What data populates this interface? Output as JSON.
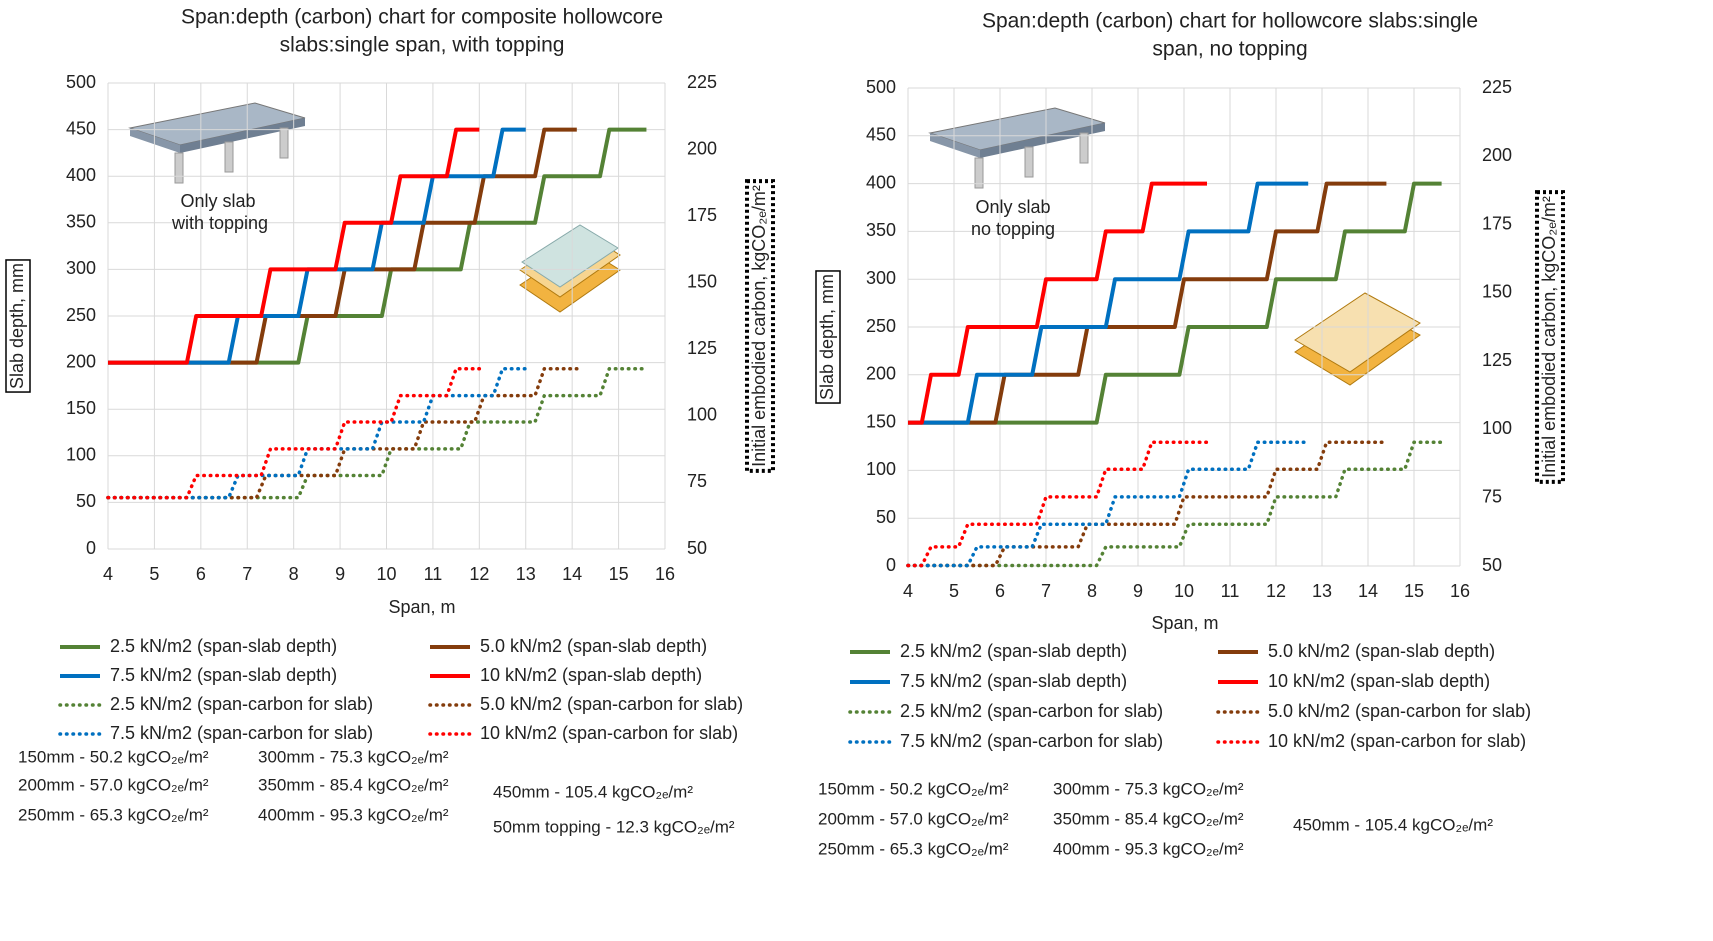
{
  "chart_data": [
    {
      "type": "line",
      "title": [
        "Span:depth (carbon) chart for composite hollowcore",
        "slabs:single span, with topping"
      ],
      "x_label": "Span, m",
      "y_label": "Slab depth, mm",
      "y2_label": "Initial embodied carbon, kgCO₂ₑ/m²",
      "annotation": [
        "Only slab",
        "with topping"
      ],
      "xlim": [
        4,
        16
      ],
      "xticks": [
        4,
        5,
        6,
        7,
        8,
        9,
        10,
        11,
        12,
        13,
        14,
        15,
        16
      ],
      "ylim": [
        0,
        500
      ],
      "yticks": [
        0,
        50,
        100,
        150,
        200,
        250,
        300,
        350,
        400,
        450,
        500
      ],
      "y2lim": [
        50,
        225
      ],
      "y2ticks": [
        50,
        75,
        100,
        125,
        150,
        175,
        200,
        225
      ],
      "grid": true,
      "series": [
        {
          "name": "2.5 kN/m2 (span-slab depth)",
          "color": "#548235",
          "style": "solid",
          "x": [
            4,
            8.1,
            8.3,
            9.9,
            10.1,
            11.6,
            11.8,
            13.2,
            13.4,
            14.6,
            14.8,
            15.6
          ],
          "values": [
            200,
            200,
            250,
            250,
            300,
            300,
            350,
            350,
            400,
            400,
            450,
            450
          ]
        },
        {
          "name": "5.0 kN/m2 (span-slab depth)",
          "color": "#843c0c",
          "style": "solid",
          "x": [
            4,
            7.2,
            7.4,
            8.9,
            9.1,
            10.6,
            10.8,
            11.9,
            12.1,
            13.2,
            13.4,
            14.1
          ],
          "values": [
            200,
            200,
            250,
            250,
            300,
            300,
            350,
            350,
            400,
            400,
            450,
            450
          ]
        },
        {
          "name": "7.5 kN/m2 (span-slab depth)",
          "color": "#0070c0",
          "style": "solid",
          "x": [
            4,
            6.6,
            6.8,
            8.1,
            8.3,
            9.7,
            9.9,
            10.8,
            11,
            12.3,
            12.5,
            13
          ],
          "values": [
            200,
            200,
            250,
            250,
            300,
            300,
            350,
            350,
            400,
            400,
            450,
            450
          ]
        },
        {
          "name": "10 kN/m2 (span-slab depth)",
          "color": "#ff0000",
          "style": "solid",
          "x": [
            4,
            5.7,
            5.9,
            7.3,
            7.5,
            8.9,
            9.1,
            10.1,
            10.3,
            11.3,
            11.5,
            12
          ],
          "values": [
            200,
            200,
            250,
            250,
            300,
            300,
            350,
            350,
            400,
            400,
            450,
            450
          ]
        },
        {
          "name": "2.5 kN/m2 (span-carbon for slab)",
          "color": "#548235",
          "style": "dotted",
          "axis": "y2",
          "x": [
            4,
            8.1,
            8.3,
            9.9,
            10.1,
            11.6,
            11.8,
            13.2,
            13.4,
            14.6,
            14.8,
            15.6
          ],
          "values": [
            69.3,
            69.3,
            77.6,
            77.6,
            87.6,
            87.6,
            97.7,
            97.7,
            107.6,
            107.6,
            117.7,
            117.7
          ]
        },
        {
          "name": "5.0 kN/m2 (span-carbon for slab)",
          "color": "#843c0c",
          "style": "dotted",
          "axis": "y2",
          "x": [
            4,
            7.2,
            7.4,
            8.9,
            9.1,
            10.6,
            10.8,
            11.9,
            12.1,
            13.2,
            13.4,
            14.1
          ],
          "values": [
            69.3,
            69.3,
            77.6,
            77.6,
            87.6,
            87.6,
            97.7,
            97.7,
            107.6,
            107.6,
            117.7,
            117.7
          ]
        },
        {
          "name": "7.5 kN/m2 (span-carbon for slab)",
          "color": "#0070c0",
          "style": "dotted",
          "axis": "y2",
          "x": [
            4,
            6.6,
            6.8,
            8.1,
            8.3,
            9.7,
            9.9,
            10.8,
            11,
            12.3,
            12.5,
            13
          ],
          "values": [
            69.3,
            69.3,
            77.6,
            77.6,
            87.6,
            87.6,
            97.7,
            97.7,
            107.6,
            107.6,
            117.7,
            117.7
          ]
        },
        {
          "name": "10 kN/m2 (span-carbon for slab)",
          "color": "#ff0000",
          "style": "dotted",
          "axis": "y2",
          "x": [
            4,
            5.7,
            5.9,
            7.3,
            7.5,
            8.9,
            9.1,
            10.1,
            10.3,
            11.3,
            11.5,
            12
          ],
          "values": [
            69.3,
            69.3,
            77.6,
            77.6,
            87.6,
            87.6,
            97.7,
            97.7,
            107.6,
            107.6,
            117.7,
            117.7
          ]
        }
      ],
      "notes": [
        "150mm - 50.2 kgCO₂ₑ/m²",
        "200mm - 57.0 kgCO₂ₑ/m²",
        "250mm - 65.3 kgCO₂ₑ/m²",
        "300mm - 75.3 kgCO₂ₑ/m²",
        "350mm - 85.4 kgCO₂ₑ/m²",
        "400mm - 95.3 kgCO₂ₑ/m²",
        "450mm - 105.4 kgCO₂ₑ/m²",
        "50mm topping - 12.3 kgCO₂ₑ/m²"
      ]
    },
    {
      "type": "line",
      "title": [
        "Span:depth (carbon) chart for hollowcore slabs:single",
        "span, no topping"
      ],
      "x_label": "Span, m",
      "y_label": "Slab depth, mm",
      "y2_label": "Initial embodied carbon, kgCO₂ₑ/m²",
      "annotation": [
        "Only slab",
        "no topping"
      ],
      "xlim": [
        4,
        16
      ],
      "xticks": [
        4,
        5,
        6,
        7,
        8,
        9,
        10,
        11,
        12,
        13,
        14,
        15,
        16
      ],
      "ylim": [
        0,
        500
      ],
      "yticks": [
        0,
        50,
        100,
        150,
        200,
        250,
        300,
        350,
        400,
        450,
        500
      ],
      "y2lim": [
        50,
        225
      ],
      "y2ticks": [
        50,
        75,
        100,
        125,
        150,
        175,
        200,
        225
      ],
      "grid": true,
      "series": [
        {
          "name": "2.5 kN/m2 (span-slab depth)",
          "color": "#548235",
          "style": "solid",
          "x": [
            4,
            8.1,
            8.3,
            9.9,
            10.1,
            11.8,
            12,
            13.3,
            13.5,
            14.8,
            15,
            15.6
          ],
          "values": [
            150,
            150,
            200,
            200,
            250,
            250,
            300,
            300,
            350,
            350,
            400,
            400
          ]
        },
        {
          "name": "5.0 kN/m2 (span-slab depth)",
          "color": "#843c0c",
          "style": "solid",
          "x": [
            4,
            5.9,
            6.1,
            7.7,
            7.9,
            9.8,
            10,
            11.8,
            12,
            12.9,
            13.1,
            14.4
          ],
          "values": [
            150,
            150,
            200,
            200,
            250,
            250,
            300,
            300,
            350,
            350,
            400,
            400
          ]
        },
        {
          "name": "7.5 kN/m2 (span-slab depth)",
          "color": "#0070c0",
          "style": "solid",
          "x": [
            4,
            5.3,
            5.5,
            6.7,
            6.9,
            8.3,
            8.5,
            9.9,
            10.1,
            11.4,
            11.6,
            12.7
          ],
          "values": [
            150,
            150,
            200,
            200,
            250,
            250,
            300,
            300,
            350,
            350,
            400,
            400
          ]
        },
        {
          "name": "10 kN/m2 (span-slab depth)",
          "color": "#ff0000",
          "style": "solid",
          "x": [
            4,
            4.3,
            4.5,
            5.1,
            5.3,
            6.8,
            7,
            8.1,
            8.3,
            9.1,
            9.3,
            10.5
          ],
          "values": [
            150,
            150,
            200,
            200,
            250,
            250,
            300,
            300,
            350,
            350,
            400,
            400
          ]
        },
        {
          "name": "2.5 kN/m2 (span-carbon for slab)",
          "color": "#548235",
          "style": "dotted",
          "axis": "y2",
          "x": [
            4,
            8.1,
            8.3,
            9.9,
            10.1,
            11.8,
            12,
            13.3,
            13.5,
            14.8,
            15,
            15.6
          ],
          "values": [
            50.2,
            50.2,
            57,
            57,
            65.3,
            65.3,
            75.3,
            75.3,
            85.4,
            85.4,
            95.3,
            95.3
          ]
        },
        {
          "name": "5.0 kN/m2 (span-carbon for slab)",
          "color": "#843c0c",
          "style": "dotted",
          "axis": "y2",
          "x": [
            4,
            5.9,
            6.1,
            7.7,
            7.9,
            9.8,
            10,
            11.8,
            12,
            12.9,
            13.1,
            14.4
          ],
          "values": [
            50.2,
            50.2,
            57,
            57,
            65.3,
            65.3,
            75.3,
            75.3,
            85.4,
            85.4,
            95.3,
            95.3
          ]
        },
        {
          "name": "7.5 kN/m2 (span-carbon for slab)",
          "color": "#0070c0",
          "style": "dotted",
          "axis": "y2",
          "x": [
            4,
            5.3,
            5.5,
            6.7,
            6.9,
            8.3,
            8.5,
            9.9,
            10.1,
            11.4,
            11.6,
            12.7
          ],
          "values": [
            50.2,
            50.2,
            57,
            57,
            65.3,
            65.3,
            75.3,
            75.3,
            85.4,
            85.4,
            95.3,
            95.3
          ]
        },
        {
          "name": "10 kN/m2 (span-carbon for slab)",
          "color": "#ff0000",
          "style": "dotted",
          "axis": "y2",
          "x": [
            4,
            4.3,
            4.5,
            5.1,
            5.3,
            6.8,
            7,
            8.1,
            8.3,
            9.1,
            9.3,
            10.5
          ],
          "values": [
            50.2,
            50.2,
            57,
            57,
            65.3,
            65.3,
            75.3,
            75.3,
            85.4,
            85.4,
            95.3,
            95.3
          ]
        }
      ],
      "notes": [
        "150mm - 50.2 kgCO₂ₑ/m²",
        "200mm - 57.0 kgCO₂ₑ/m²",
        "250mm - 65.3 kgCO₂ₑ/m²",
        "300mm - 75.3 kgCO₂ₑ/m²",
        "350mm - 85.4 kgCO₂ₑ/m²",
        "400mm - 95.3 kgCO₂ₑ/m²",
        "450mm - 105.4 kgCO₂ₑ/m²"
      ]
    }
  ]
}
